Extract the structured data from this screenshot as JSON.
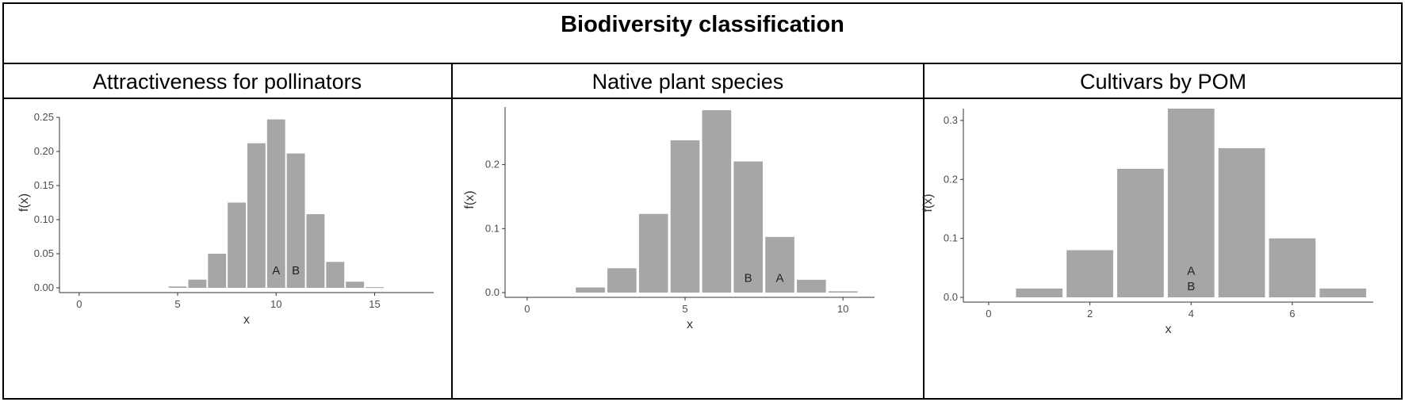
{
  "figure": {
    "title": "Biodiversity classification"
  },
  "chart_data": [
    {
      "type": "bar",
      "title": "Attractiveness for pollinators",
      "xlabel": "x",
      "ylabel": "f(x)",
      "xlim": [
        -1,
        18
      ],
      "ylim": [
        0,
        0.25
      ],
      "xticks": [
        0,
        5,
        10,
        15
      ],
      "xtick_labels": [
        "0",
        "5",
        "10",
        "15"
      ],
      "yticks": [
        0,
        0.05,
        0.1,
        0.15,
        0.2,
        0.25
      ],
      "ytick_labels": [
        "0.00",
        "0.05",
        "0.10",
        "0.15",
        "0.20",
        "0.25"
      ],
      "bar_width": 0.92,
      "x": [
        5,
        6,
        7,
        8,
        9,
        10,
        11,
        12,
        13,
        14,
        15
      ],
      "values": [
        0.002,
        0.012,
        0.05,
        0.125,
        0.212,
        0.247,
        0.197,
        0.108,
        0.038,
        0.009,
        0.001
      ],
      "annotations": [
        {
          "text": "A",
          "x": 10,
          "y": 0.02
        },
        {
          "text": "B",
          "x": 11,
          "y": 0.02
        }
      ]
    },
    {
      "type": "bar",
      "title": "Native plant species",
      "xlabel": "x",
      "ylabel": "f(x)",
      "xlim": [
        -0.7,
        11.0
      ],
      "ylim": [
        0,
        0.29
      ],
      "xticks": [
        0,
        5,
        10
      ],
      "xtick_labels": [
        "0",
        "5",
        "10"
      ],
      "yticks": [
        0,
        0.1,
        0.2
      ],
      "ytick_labels": [
        "0.0",
        "0.1",
        "0.2"
      ],
      "bar_width": 0.92,
      "x": [
        2,
        3,
        4,
        5,
        6,
        7,
        8,
        9,
        10
      ],
      "values": [
        0.008,
        0.038,
        0.123,
        0.238,
        0.285,
        0.205,
        0.087,
        0.02,
        0.002
      ],
      "annotations": [
        {
          "text": "B",
          "x": 7,
          "y": 0.017
        },
        {
          "text": "A",
          "x": 8,
          "y": 0.017
        }
      ]
    },
    {
      "type": "bar",
      "title": "Cultivars by POM",
      "xlabel": "x",
      "ylabel": "f(x)",
      "xlim": [
        -0.5,
        7.6
      ],
      "ylim": [
        0,
        0.32
      ],
      "xticks": [
        0,
        2,
        4,
        6
      ],
      "xtick_labels": [
        "0",
        "2",
        "4",
        "6"
      ],
      "yticks": [
        0,
        0.1,
        0.2,
        0.3
      ],
      "ytick_labels": [
        "0.0",
        "0.1",
        "0.2",
        "0.3"
      ],
      "bar_width": 0.92,
      "x": [
        1,
        2,
        3,
        4,
        5,
        6,
        7
      ],
      "values": [
        0.015,
        0.08,
        0.218,
        0.32,
        0.253,
        0.1,
        0.015
      ],
      "annotations": [
        {
          "text": "A",
          "x": 4,
          "y": 0.038
        },
        {
          "text": "B",
          "x": 4,
          "y": 0.012
        }
      ]
    }
  ],
  "colors": {
    "bar": "#a6a6a6",
    "axis": "#333333",
    "border": "#000000"
  }
}
